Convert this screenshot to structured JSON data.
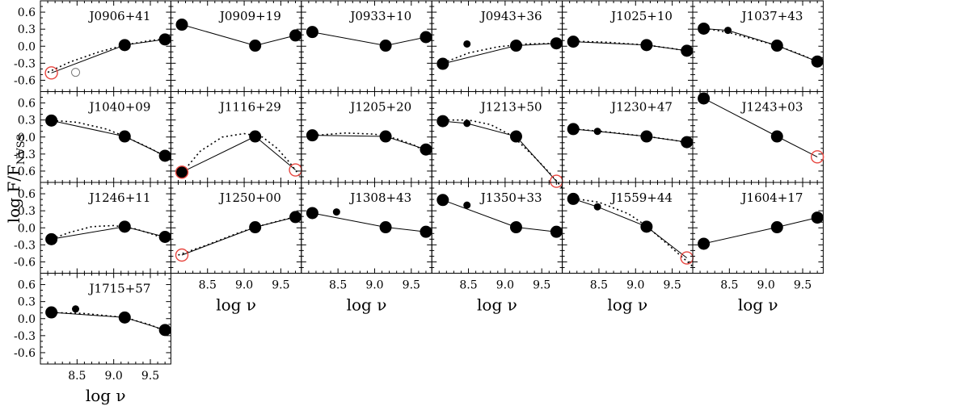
{
  "chart_data": {
    "type": "scatter",
    "xlabel": "log ν",
    "ylabel": "log F/F",
    "ylabel_sub": "NVSS",
    "xlim": [
      8.0,
      9.78
    ],
    "ylim": [
      -0.8,
      0.8
    ],
    "xticks": [
      8.5,
      9.0,
      9.5
    ],
    "xtick_labels": [
      "8.5",
      "9.0",
      "9.5"
    ],
    "yticks": [
      0.6,
      0.3,
      0.0,
      -0.3,
      -0.6
    ],
    "ytick_labels": [
      "0.6",
      "0.3",
      "0.0",
      "-0.3",
      "-0.6"
    ],
    "grid": false,
    "panels": [
      {
        "name": "J0906+41",
        "col": 0,
        "row": 0,
        "points": [
          {
            "x": 8.15,
            "y": -0.47,
            "s": "ro"
          },
          {
            "x": 8.48,
            "y": -0.46,
            "s": "go"
          },
          {
            "x": 9.15,
            "y": 0.02,
            "s": "L"
          },
          {
            "x": 9.7,
            "y": 0.12,
            "s": "L"
          }
        ],
        "line": [
          [
            8.15,
            -0.47
          ],
          [
            9.15,
            0.02
          ],
          [
            9.7,
            0.12
          ]
        ],
        "fit": [
          [
            8.1,
            -0.46
          ],
          [
            8.4,
            -0.28
          ],
          [
            8.8,
            -0.1
          ],
          [
            9.15,
            0.02
          ],
          [
            9.5,
            0.1
          ],
          [
            9.78,
            0.14
          ]
        ]
      },
      {
        "name": "J0909+19",
        "col": 1,
        "row": 0,
        "points": [
          {
            "x": 8.15,
            "y": 0.38,
            "s": "L"
          },
          {
            "x": 9.15,
            "y": 0.01,
            "s": "L"
          },
          {
            "x": 9.7,
            "y": 0.19,
            "s": "L"
          }
        ],
        "line": [
          [
            8.15,
            0.38
          ],
          [
            9.15,
            0.01
          ],
          [
            9.7,
            0.19
          ]
        ],
        "fit": []
      },
      {
        "name": "J0933+10",
        "col": 2,
        "row": 0,
        "points": [
          {
            "x": 8.15,
            "y": 0.25,
            "s": "L"
          },
          {
            "x": 9.15,
            "y": 0.01,
            "s": "L"
          },
          {
            "x": 9.7,
            "y": 0.16,
            "s": "L"
          }
        ],
        "line": [
          [
            8.15,
            0.25
          ],
          [
            9.15,
            0.01
          ],
          [
            9.7,
            0.16
          ]
        ],
        "fit": []
      },
      {
        "name": "J0943+36",
        "col": 3,
        "row": 0,
        "points": [
          {
            "x": 8.15,
            "y": -0.31,
            "s": "L"
          },
          {
            "x": 8.48,
            "y": 0.04,
            "s": "S"
          },
          {
            "x": 9.15,
            "y": 0.01,
            "s": "L"
          },
          {
            "x": 9.7,
            "y": 0.05,
            "s": "L"
          }
        ],
        "line": [
          [
            8.15,
            -0.31
          ],
          [
            9.15,
            0.01
          ],
          [
            9.7,
            0.05
          ]
        ],
        "fit": [
          [
            8.1,
            -0.32
          ],
          [
            8.5,
            -0.12
          ],
          [
            8.9,
            -0.01
          ],
          [
            9.3,
            0.04
          ],
          [
            9.78,
            0.05
          ]
        ]
      },
      {
        "name": "J1025+10",
        "col": 4,
        "row": 0,
        "points": [
          {
            "x": 8.15,
            "y": 0.08,
            "s": "L"
          },
          {
            "x": 9.15,
            "y": 0.02,
            "s": "L"
          },
          {
            "x": 9.7,
            "y": -0.08,
            "s": "L"
          }
        ],
        "line": [
          [
            8.15,
            0.08
          ],
          [
            9.15,
            0.02
          ],
          [
            9.7,
            -0.08
          ]
        ],
        "fit": [
          [
            8.1,
            0.09
          ],
          [
            8.6,
            0.07
          ],
          [
            9.15,
            0.02
          ],
          [
            9.5,
            -0.04
          ],
          [
            9.78,
            -0.1
          ]
        ]
      },
      {
        "name": "J1037+43",
        "col": 5,
        "row": 0,
        "points": [
          {
            "x": 8.15,
            "y": 0.31,
            "s": "L"
          },
          {
            "x": 8.48,
            "y": 0.28,
            "s": "S"
          },
          {
            "x": 9.15,
            "y": 0.01,
            "s": "L"
          },
          {
            "x": 9.7,
            "y": -0.27,
            "s": "L"
          }
        ],
        "line": [
          [
            8.15,
            0.31
          ],
          [
            8.48,
            0.28
          ],
          [
            9.15,
            0.01
          ],
          [
            9.7,
            -0.27
          ]
        ],
        "fit": [
          [
            8.1,
            0.33
          ],
          [
            8.5,
            0.24
          ],
          [
            9.15,
            0.01
          ],
          [
            9.5,
            -0.16
          ],
          [
            9.78,
            -0.32
          ]
        ]
      },
      {
        "name": "J1040+09",
        "col": 0,
        "row": 1,
        "points": [
          {
            "x": 8.15,
            "y": 0.29,
            "s": "L"
          },
          {
            "x": 9.15,
            "y": 0.01,
            "s": "L"
          },
          {
            "x": 9.7,
            "y": -0.33,
            "s": "L"
          }
        ],
        "line": [
          [
            8.15,
            0.29
          ],
          [
            9.15,
            0.01
          ],
          [
            9.7,
            -0.33
          ]
        ],
        "fit": [
          [
            8.1,
            0.3
          ],
          [
            8.5,
            0.26
          ],
          [
            8.9,
            0.14
          ],
          [
            9.15,
            0.01
          ],
          [
            9.5,
            -0.2
          ],
          [
            9.78,
            -0.4
          ]
        ]
      },
      {
        "name": "J1116+29",
        "col": 1,
        "row": 1,
        "points": [
          {
            "x": 8.15,
            "y": -0.62,
            "s": "L"
          },
          {
            "x": 8.15,
            "y": -0.62,
            "s": "ro"
          },
          {
            "x": 9.15,
            "y": 0.01,
            "s": "L"
          },
          {
            "x": 9.7,
            "y": -0.58,
            "s": "ro"
          }
        ],
        "line": [
          [
            8.15,
            -0.62
          ],
          [
            9.15,
            0.01
          ],
          [
            9.7,
            -0.58
          ]
        ],
        "fit": [
          [
            8.12,
            -0.68
          ],
          [
            8.4,
            -0.25
          ],
          [
            8.7,
            0.0
          ],
          [
            9.0,
            0.06
          ],
          [
            9.25,
            0.0
          ],
          [
            9.45,
            -0.2
          ],
          [
            9.62,
            -0.45
          ],
          [
            9.78,
            -0.72
          ]
        ]
      },
      {
        "name": "J1205+20",
        "col": 2,
        "row": 1,
        "points": [
          {
            "x": 8.15,
            "y": 0.03,
            "s": "L"
          },
          {
            "x": 9.15,
            "y": 0.01,
            "s": "L"
          },
          {
            "x": 9.7,
            "y": -0.22,
            "s": "L"
          }
        ],
        "line": [
          [
            8.15,
            0.03
          ],
          [
            9.15,
            0.01
          ],
          [
            9.7,
            -0.22
          ]
        ],
        "fit": [
          [
            8.1,
            0.02
          ],
          [
            8.6,
            0.07
          ],
          [
            9.0,
            0.05
          ],
          [
            9.3,
            -0.03
          ],
          [
            9.55,
            -0.15
          ],
          [
            9.78,
            -0.32
          ]
        ]
      },
      {
        "name": "J1213+50",
        "col": 3,
        "row": 1,
        "points": [
          {
            "x": 8.15,
            "y": 0.28,
            "s": "L"
          },
          {
            "x": 8.48,
            "y": 0.24,
            "s": "S"
          },
          {
            "x": 9.15,
            "y": 0.01,
            "s": "L"
          },
          {
            "x": 9.7,
            "y": -0.78,
            "s": "ro"
          }
        ],
        "line": [
          [
            8.15,
            0.28
          ],
          [
            8.48,
            0.24
          ],
          [
            9.15,
            0.01
          ],
          [
            9.7,
            -0.78
          ]
        ],
        "fit": [
          [
            8.1,
            0.3
          ],
          [
            8.5,
            0.3
          ],
          [
            8.8,
            0.22
          ],
          [
            9.1,
            0.02
          ],
          [
            9.4,
            -0.35
          ],
          [
            9.62,
            -0.65
          ],
          [
            9.78,
            -0.9
          ]
        ]
      },
      {
        "name": "J1230+47",
        "col": 4,
        "row": 1,
        "points": [
          {
            "x": 8.15,
            "y": 0.14,
            "s": "L"
          },
          {
            "x": 8.48,
            "y": 0.1,
            "s": "S"
          },
          {
            "x": 9.15,
            "y": 0.01,
            "s": "L"
          },
          {
            "x": 9.7,
            "y": -0.09,
            "s": "L"
          }
        ],
        "line": [
          [
            8.15,
            0.14
          ],
          [
            8.48,
            0.1
          ],
          [
            9.15,
            0.01
          ],
          [
            9.7,
            -0.09
          ]
        ],
        "fit": [
          [
            8.1,
            0.15
          ],
          [
            8.6,
            0.09
          ],
          [
            9.15,
            0.01
          ],
          [
            9.5,
            -0.05
          ],
          [
            9.78,
            -0.12
          ]
        ]
      },
      {
        "name": "J1243+03",
        "col": 5,
        "row": 1,
        "points": [
          {
            "x": 8.15,
            "y": 0.68,
            "s": "L"
          },
          {
            "x": 9.15,
            "y": 0.01,
            "s": "L"
          },
          {
            "x": 9.7,
            "y": -0.35,
            "s": "ro"
          }
        ],
        "line": [
          [
            8.15,
            0.68
          ],
          [
            9.15,
            0.01
          ],
          [
            9.7,
            -0.35
          ]
        ],
        "fit": []
      },
      {
        "name": "J1246+11",
        "col": 0,
        "row": 2,
        "points": [
          {
            "x": 8.15,
            "y": -0.2,
            "s": "L"
          },
          {
            "x": 9.15,
            "y": 0.02,
            "s": "L"
          },
          {
            "x": 9.7,
            "y": -0.16,
            "s": "L"
          }
        ],
        "line": [
          [
            8.15,
            -0.2
          ],
          [
            9.15,
            0.02
          ],
          [
            9.7,
            -0.16
          ]
        ],
        "fit": [
          [
            8.1,
            -0.22
          ],
          [
            8.4,
            -0.08
          ],
          [
            8.7,
            0.02
          ],
          [
            9.0,
            0.04
          ],
          [
            9.3,
            -0.02
          ],
          [
            9.55,
            -0.12
          ],
          [
            9.78,
            -0.24
          ]
        ]
      },
      {
        "name": "J1250+00",
        "col": 1,
        "row": 2,
        "points": [
          {
            "x": 8.15,
            "y": -0.48,
            "s": "ro"
          },
          {
            "x": 9.15,
            "y": 0.01,
            "s": "L"
          },
          {
            "x": 9.7,
            "y": 0.19,
            "s": "L"
          }
        ],
        "line": [
          [
            8.15,
            -0.48
          ],
          [
            9.15,
            0.01
          ],
          [
            9.7,
            0.19
          ]
        ],
        "fit": [
          [
            8.1,
            -0.48
          ],
          [
            8.5,
            -0.3
          ],
          [
            8.9,
            -0.1
          ],
          [
            9.15,
            0.01
          ],
          [
            9.5,
            0.13
          ],
          [
            9.78,
            0.22
          ]
        ]
      },
      {
        "name": "J1308+43",
        "col": 2,
        "row": 2,
        "points": [
          {
            "x": 8.15,
            "y": 0.26,
            "s": "L"
          },
          {
            "x": 8.48,
            "y": 0.28,
            "s": "S"
          },
          {
            "x": 9.15,
            "y": 0.01,
            "s": "L"
          },
          {
            "x": 9.7,
            "y": -0.07,
            "s": "L"
          }
        ],
        "line": [
          [
            8.15,
            0.26
          ],
          [
            9.15,
            0.01
          ],
          [
            9.7,
            -0.07
          ]
        ],
        "fit": []
      },
      {
        "name": "J1350+33",
        "col": 3,
        "row": 2,
        "points": [
          {
            "x": 8.15,
            "y": 0.49,
            "s": "L"
          },
          {
            "x": 8.48,
            "y": 0.4,
            "s": "S"
          },
          {
            "x": 9.15,
            "y": 0.01,
            "s": "L"
          },
          {
            "x": 9.7,
            "y": -0.07,
            "s": "L"
          }
        ],
        "line": [
          [
            8.15,
            0.49
          ],
          [
            9.15,
            0.01
          ],
          [
            9.7,
            -0.07
          ]
        ],
        "fit": []
      },
      {
        "name": "J1559+44",
        "col": 4,
        "row": 2,
        "points": [
          {
            "x": 8.15,
            "y": 0.51,
            "s": "L"
          },
          {
            "x": 8.48,
            "y": 0.37,
            "s": "S"
          },
          {
            "x": 9.15,
            "y": 0.02,
            "s": "L"
          },
          {
            "x": 9.7,
            "y": -0.53,
            "s": "ro"
          }
        ],
        "line": [
          [
            8.15,
            0.51
          ],
          [
            8.48,
            0.37
          ],
          [
            9.15,
            0.02
          ],
          [
            9.7,
            -0.53
          ]
        ],
        "fit": [
          [
            8.1,
            0.53
          ],
          [
            8.5,
            0.45
          ],
          [
            8.9,
            0.25
          ],
          [
            9.15,
            0.03
          ],
          [
            9.5,
            -0.36
          ],
          [
            9.78,
            -0.68
          ]
        ]
      },
      {
        "name": "J1604+17",
        "col": 5,
        "row": 2,
        "points": [
          {
            "x": 8.15,
            "y": -0.28,
            "s": "L"
          },
          {
            "x": 9.15,
            "y": 0.01,
            "s": "L"
          },
          {
            "x": 9.7,
            "y": 0.18,
            "s": "L"
          }
        ],
        "line": [
          [
            8.15,
            -0.28
          ],
          [
            9.15,
            0.01
          ],
          [
            9.7,
            0.18
          ]
        ],
        "fit": []
      },
      {
        "name": "J1715+57",
        "col": 0,
        "row": 3,
        "points": [
          {
            "x": 8.15,
            "y": 0.11,
            "s": "L"
          },
          {
            "x": 8.48,
            "y": 0.17,
            "s": "S"
          },
          {
            "x": 9.15,
            "y": 0.02,
            "s": "L"
          },
          {
            "x": 9.7,
            "y": -0.2,
            "s": "L"
          }
        ],
        "line": [
          [
            8.15,
            0.11
          ],
          [
            9.15,
            0.02
          ],
          [
            9.7,
            -0.2
          ]
        ],
        "fit": [
          [
            8.1,
            0.11
          ],
          [
            8.6,
            0.09
          ],
          [
            9.15,
            0.02
          ],
          [
            9.5,
            -0.11
          ],
          [
            9.78,
            -0.26
          ]
        ]
      }
    ]
  }
}
